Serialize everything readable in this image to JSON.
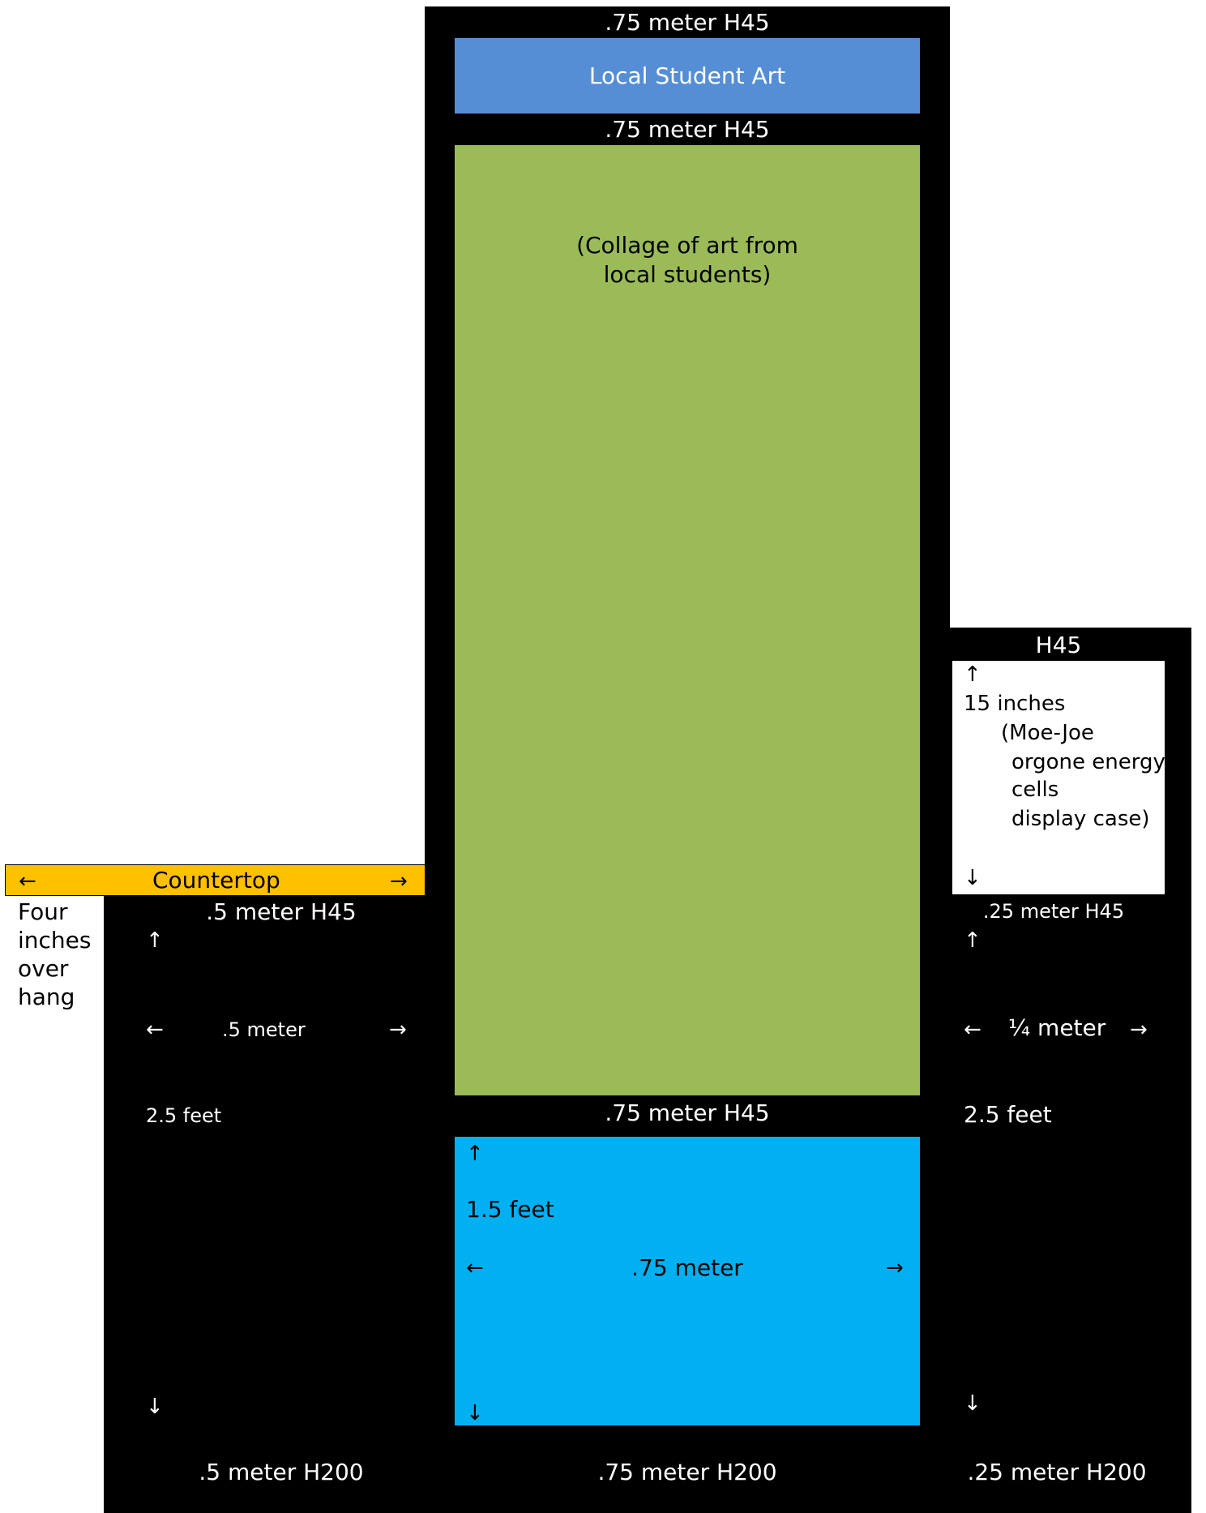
{
  "center_column": {
    "top_label": ".75 meter H45",
    "banner_label": "Local Student Art",
    "upper_label": ".75 meter H45",
    "collage_line1": "(Collage of art from",
    "collage_line2": "local students)",
    "middle_label": ".75 meter H45",
    "lower_panel": {
      "up_arrow": "↑",
      "height_label": "1.5 feet",
      "left_arrow": "←",
      "width_label": ".75 meter",
      "right_arrow": "→",
      "down_arrow": "↓"
    },
    "bottom_label": ".75 meter H200"
  },
  "countertop": {
    "left_arrow": "←",
    "label": "Countertop",
    "right_arrow": "→"
  },
  "overhang_note": [
    "Four",
    "inches",
    "over",
    "hang"
  ],
  "left_cabinet": {
    "top_label": ".5 meter H45",
    "up_arrow": "↑",
    "left_arrow": "←",
    "width_label": ".5 meter",
    "right_arrow": "→",
    "height_label": "2.5 feet",
    "down_arrow": "↓",
    "bottom_label": ".5 meter H200"
  },
  "right_cabinet": {
    "display_top_label": "H45",
    "display_case": {
      "up_arrow": "↑",
      "height_label": "15 inches",
      "desc_line1": "(Moe-Joe",
      "desc_line2": "orgone energy",
      "desc_line3": "cells",
      "desc_line4": "display case)",
      "down_arrow": "↓"
    },
    "top_label": ".25 meter H45",
    "up_arrow": "↑",
    "left_arrow": "←",
    "width_label": "¼ meter",
    "right_arrow": "→",
    "height_label": "2.5 feet",
    "down_arrow": "↓",
    "bottom_label": ".25 meter H200"
  },
  "colors": {
    "frame": "#000000",
    "banner": "#558ED5",
    "collage": "#9BBB59",
    "lower_panel": "#00B0F0",
    "countertop": "#FFC000",
    "display_case": "#FFFFFF"
  }
}
